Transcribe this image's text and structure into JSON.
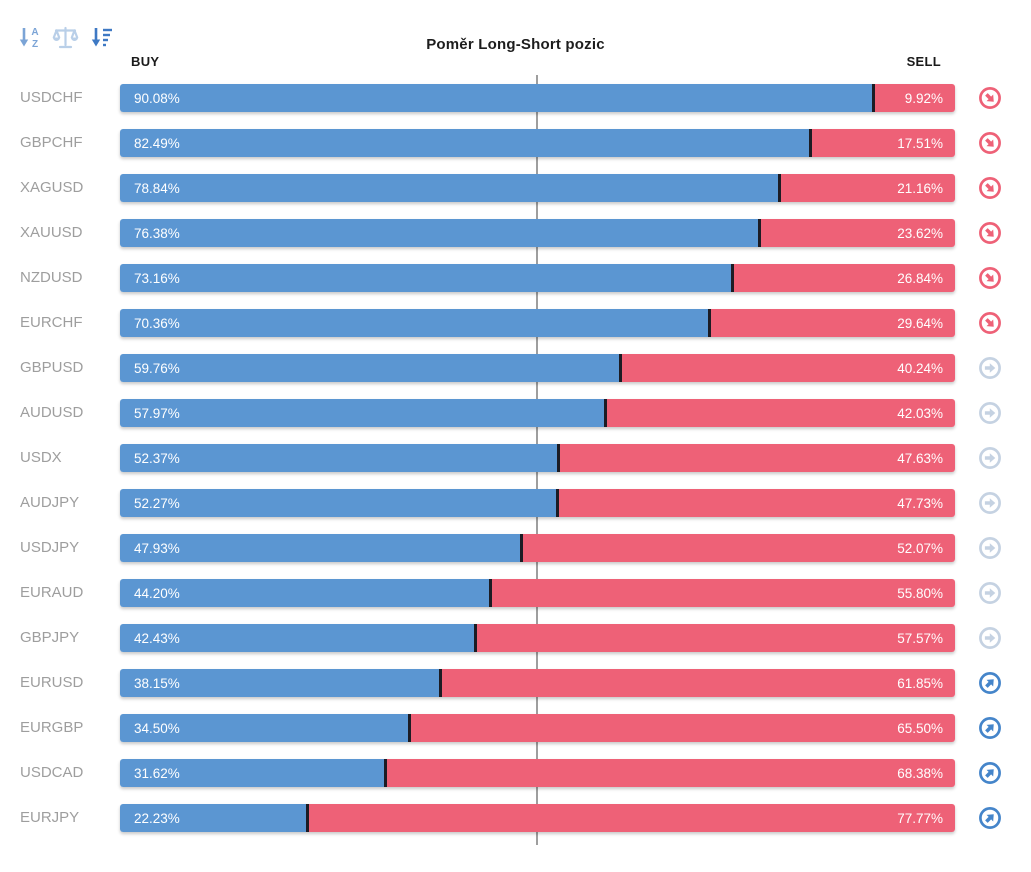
{
  "title": "Poměr Long-Short pozic",
  "axis": {
    "buy_label": "BUY",
    "sell_label": "SELL"
  },
  "toolbar": {
    "icons": [
      {
        "name": "sort-alphabetical-icon",
        "color": "#7ba4d6"
      },
      {
        "name": "balance-scale-icon",
        "color": "#b9cfe8"
      },
      {
        "name": "sort-amount-desc-icon",
        "color": "#3e79c4"
      }
    ]
  },
  "colors": {
    "buy_bar": "#5b96d2",
    "sell_bar": "#ee6177",
    "bar_divider": "#1c1c24",
    "center_line": "#9e9e9e",
    "pair_label": "#9e9e9e"
  },
  "signal_icons": {
    "sell": {
      "name": "circle-arrow-down-right-icon",
      "color": "#ee6177",
      "rotation": 45
    },
    "neutral": {
      "name": "circle-arrow-right-icon",
      "color": "#c5d2e2",
      "rotation": 0
    },
    "buy": {
      "name": "circle-arrow-up-right-icon",
      "color": "#4585ca",
      "rotation": -45
    }
  },
  "rows": [
    {
      "pair": "USDCHF",
      "buy_pct": "90.08%",
      "sell_pct": "9.92%",
      "signal": "sell"
    },
    {
      "pair": "GBPCHF",
      "buy_pct": "82.49%",
      "sell_pct": "17.51%",
      "signal": "sell"
    },
    {
      "pair": "XAGUSD",
      "buy_pct": "78.84%",
      "sell_pct": "21.16%",
      "signal": "sell"
    },
    {
      "pair": "XAUUSD",
      "buy_pct": "76.38%",
      "sell_pct": "23.62%",
      "signal": "sell"
    },
    {
      "pair": "NZDUSD",
      "buy_pct": "73.16%",
      "sell_pct": "26.84%",
      "signal": "sell"
    },
    {
      "pair": "EURCHF",
      "buy_pct": "70.36%",
      "sell_pct": "29.64%",
      "signal": "sell"
    },
    {
      "pair": "GBPUSD",
      "buy_pct": "59.76%",
      "sell_pct": "40.24%",
      "signal": "neutral"
    },
    {
      "pair": "AUDUSD",
      "buy_pct": "57.97%",
      "sell_pct": "42.03%",
      "signal": "neutral"
    },
    {
      "pair": "USDX",
      "buy_pct": "52.37%",
      "sell_pct": "47.63%",
      "signal": "neutral"
    },
    {
      "pair": "AUDJPY",
      "buy_pct": "52.27%",
      "sell_pct": "47.73%",
      "signal": "neutral"
    },
    {
      "pair": "USDJPY",
      "buy_pct": "47.93%",
      "sell_pct": "52.07%",
      "signal": "neutral"
    },
    {
      "pair": "EURAUD",
      "buy_pct": "44.20%",
      "sell_pct": "55.80%",
      "signal": "neutral"
    },
    {
      "pair": "GBPJPY",
      "buy_pct": "42.43%",
      "sell_pct": "57.57%",
      "signal": "neutral"
    },
    {
      "pair": "EURUSD",
      "buy_pct": "38.15%",
      "sell_pct": "61.85%",
      "signal": "buy"
    },
    {
      "pair": "EURGBP",
      "buy_pct": "34.50%",
      "sell_pct": "65.50%",
      "signal": "buy"
    },
    {
      "pair": "USDCAD",
      "buy_pct": "31.62%",
      "sell_pct": "68.38%",
      "signal": "buy"
    },
    {
      "pair": "EURJPY",
      "buy_pct": "22.23%",
      "sell_pct": "77.77%",
      "signal": "buy"
    }
  ],
  "chart_data": {
    "type": "bar",
    "orientation": "horizontal",
    "stacked": true,
    "title": "Poměr Long-Short pozic",
    "categories": [
      "USDCHF",
      "GBPCHF",
      "XAGUSD",
      "XAUUSD",
      "NZDUSD",
      "EURCHF",
      "GBPUSD",
      "AUDUSD",
      "USDX",
      "AUDJPY",
      "USDJPY",
      "EURAUD",
      "GBPJPY",
      "EURUSD",
      "EURGBP",
      "USDCAD",
      "EURJPY"
    ],
    "series": [
      {
        "name": "BUY",
        "color": "#5b96d2",
        "values": [
          90.08,
          82.49,
          78.84,
          76.38,
          73.16,
          70.36,
          59.76,
          57.97,
          52.37,
          52.27,
          47.93,
          44.2,
          42.43,
          38.15,
          34.5,
          31.62,
          22.23
        ]
      },
      {
        "name": "SELL",
        "color": "#ee6177",
        "values": [
          9.92,
          17.51,
          21.16,
          23.62,
          26.84,
          29.64,
          40.24,
          42.03,
          47.63,
          47.73,
          52.07,
          55.8,
          57.57,
          61.85,
          65.5,
          68.38,
          77.77
        ]
      }
    ],
    "xlim": [
      0,
      100
    ],
    "reference_line": 50,
    "legend_position": "none",
    "grid": false,
    "signals": [
      "sell",
      "sell",
      "sell",
      "sell",
      "sell",
      "sell",
      "neutral",
      "neutral",
      "neutral",
      "neutral",
      "neutral",
      "neutral",
      "neutral",
      "buy",
      "buy",
      "buy",
      "buy"
    ]
  }
}
